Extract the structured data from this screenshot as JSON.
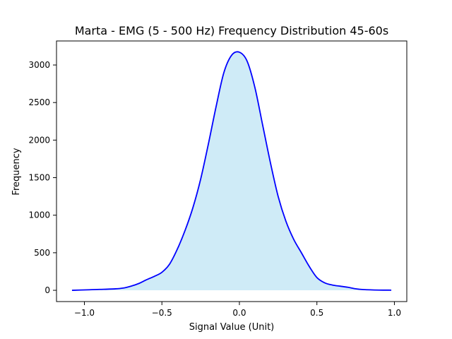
{
  "chart_data": {
    "type": "area",
    "title": "Marta - EMG (5 - 500 Hz) Frequency Distribution 45-60s",
    "xlabel": "Signal Value (Unit)",
    "ylabel": "Frequency",
    "xlim": [
      -1.18,
      1.08
    ],
    "ylim": [
      -150,
      3320
    ],
    "xticks": [
      -1.0,
      -0.5,
      0.0,
      0.5,
      1.0
    ],
    "xtick_labels": [
      "−1.0",
      "−0.5",
      "0.0",
      "0.5",
      "1.0"
    ],
    "yticks": [
      0,
      500,
      1000,
      1500,
      2000,
      2500,
      3000
    ],
    "ytick_labels": [
      "0",
      "500",
      "1000",
      "1500",
      "2000",
      "2500",
      "3000"
    ],
    "grid": false,
    "series": [
      {
        "line_color": "#0000ff",
        "fill_color": "#87ceeb",
        "x": [
          -1.08,
          -1.0,
          -0.9,
          -0.8,
          -0.75,
          -0.7,
          -0.65,
          -0.6,
          -0.55,
          -0.5,
          -0.45,
          -0.4,
          -0.35,
          -0.3,
          -0.25,
          -0.2,
          -0.15,
          -0.1,
          -0.05,
          0.0,
          0.05,
          0.1,
          0.15,
          0.2,
          0.25,
          0.3,
          0.35,
          0.4,
          0.45,
          0.5,
          0.55,
          0.6,
          0.65,
          0.7,
          0.75,
          0.8,
          0.9,
          0.98
        ],
        "y": [
          0,
          5,
          12,
          20,
          30,
          55,
          90,
          140,
          185,
          240,
          350,
          550,
          800,
          1100,
          1480,
          1950,
          2450,
          2900,
          3130,
          3170,
          3050,
          2700,
          2200,
          1700,
          1250,
          920,
          680,
          500,
          320,
          170,
          100,
          70,
          55,
          40,
          20,
          10,
          3,
          2
        ]
      }
    ]
  }
}
